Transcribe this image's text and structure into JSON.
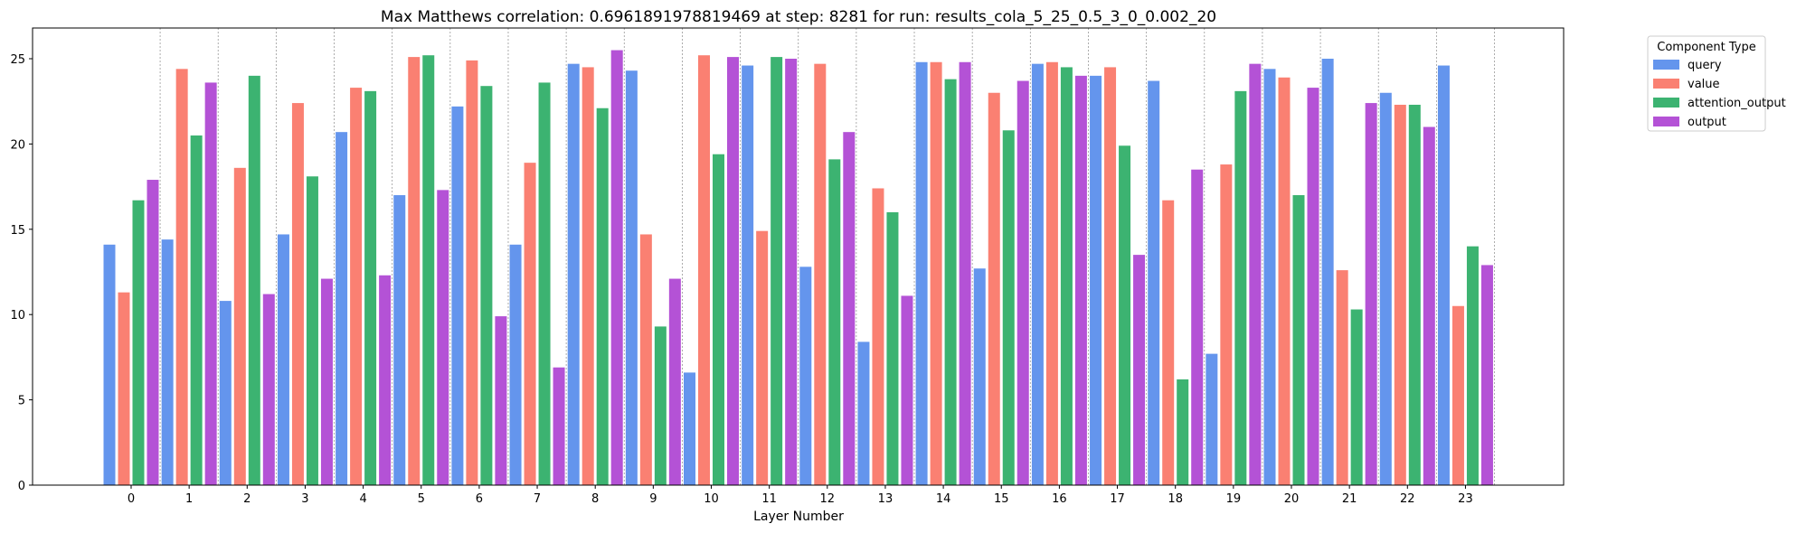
{
  "chart_data": {
    "type": "bar",
    "title": "Max Matthews correlation: 0.6961891978819469 at step: 8281 for run: results_cola_5_25_0.5_3_0_0.002_20",
    "xlabel": "Layer Number",
    "ylabel": "",
    "ylim": [
      0,
      26.8
    ],
    "yticks": [
      0,
      5,
      10,
      15,
      20,
      25
    ],
    "grid": "vertical dotted separators between layers",
    "legend": {
      "title": "Component Type",
      "placement": "outside-top-right"
    },
    "categories": [
      "0",
      "1",
      "2",
      "3",
      "4",
      "5",
      "6",
      "7",
      "8",
      "9",
      "10",
      "11",
      "12",
      "13",
      "14",
      "15",
      "16",
      "17",
      "18",
      "19",
      "20",
      "21",
      "22",
      "23"
    ],
    "series": [
      {
        "name": "query",
        "color": "#6495ED",
        "values": [
          14.1,
          14.4,
          10.8,
          14.7,
          20.7,
          17.0,
          22.2,
          14.1,
          24.7,
          24.3,
          6.6,
          24.6,
          12.8,
          8.4,
          24.8,
          12.7,
          24.7,
          24.0,
          23.7,
          7.7,
          24.4,
          25.0,
          23.0,
          24.6
        ]
      },
      {
        "name": "value",
        "color": "#FA8072",
        "values": [
          11.3,
          24.4,
          18.6,
          22.4,
          23.3,
          25.1,
          24.9,
          18.9,
          24.5,
          14.7,
          25.2,
          14.9,
          24.7,
          17.4,
          24.8,
          23.0,
          24.8,
          24.5,
          16.7,
          18.8,
          23.9,
          12.6,
          22.3,
          10.5
        ]
      },
      {
        "name": "attention_output",
        "color": "#3CB371",
        "values": [
          16.7,
          20.5,
          24.0,
          18.1,
          23.1,
          25.2,
          23.4,
          23.6,
          22.1,
          9.3,
          19.4,
          25.1,
          19.1,
          16.0,
          23.8,
          20.8,
          24.5,
          19.9,
          6.2,
          23.1,
          17.0,
          10.3,
          22.3,
          14.0
        ]
      },
      {
        "name": "output",
        "color": "#B452D6",
        "values": [
          17.9,
          23.6,
          11.2,
          12.1,
          12.3,
          17.3,
          9.9,
          6.9,
          25.5,
          12.1,
          25.1,
          25.0,
          20.7,
          11.1,
          24.8,
          23.7,
          24.0,
          13.5,
          18.5,
          24.7,
          23.3,
          22.4,
          21.0,
          12.9
        ]
      }
    ]
  }
}
